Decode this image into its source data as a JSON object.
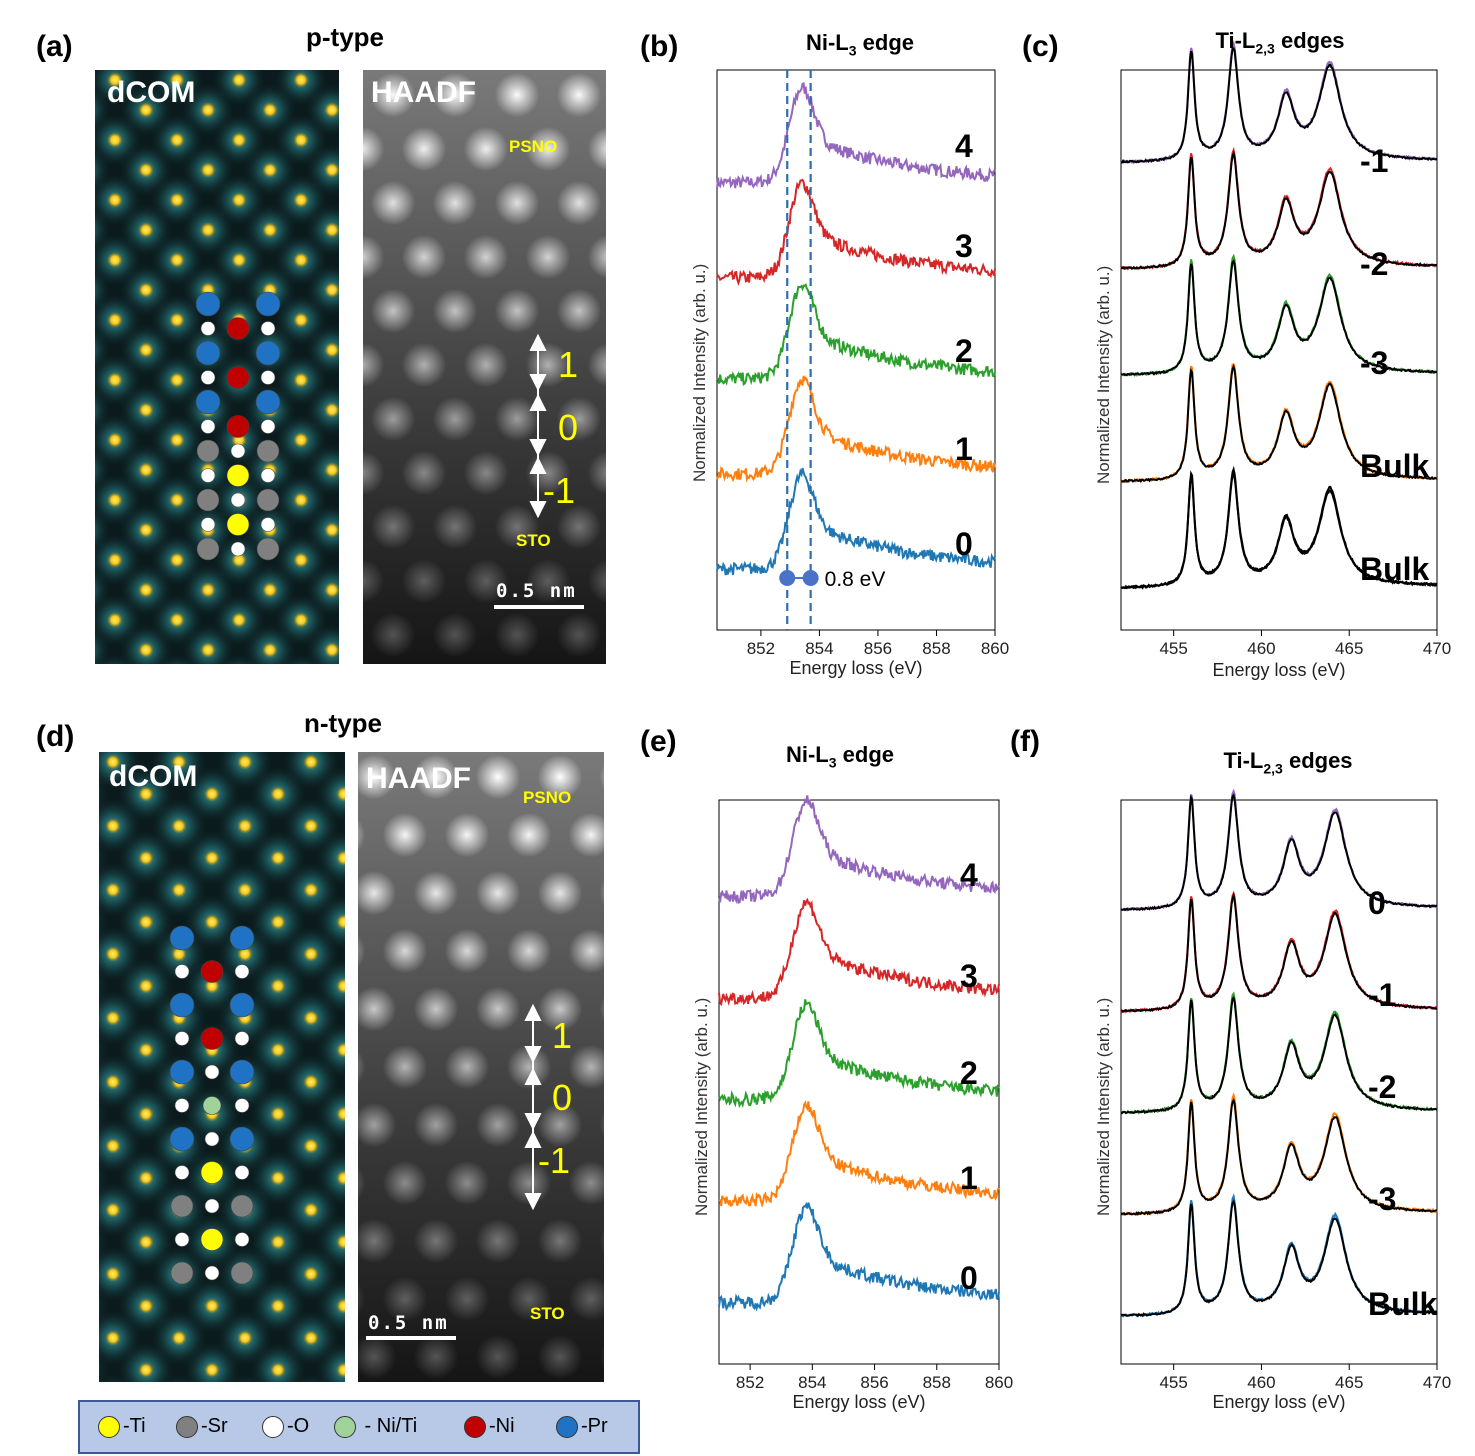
{
  "panels": {
    "a": "(a)",
    "b": "(b)",
    "c": "(c)",
    "d": "(d)",
    "e": "(e)",
    "f": "(f)"
  },
  "top": {
    "title": "p-type",
    "dcom_label": "dCOM",
    "haadf_label": "HAADF",
    "psno": "PSNO",
    "sto": "STO",
    "layers": [
      "1",
      "0",
      "-1"
    ],
    "scale": "0.5 nm"
  },
  "bottom": {
    "title": "n-type",
    "dcom_label": "dCOM",
    "haadf_label": "HAADF",
    "psno": "PSNO",
    "sto": "STO",
    "layers": [
      "1",
      "0",
      "-1"
    ],
    "scale": "0.5 nm"
  },
  "legend": [
    {
      "label": "-Ti",
      "color": "#ffff00"
    },
    {
      "label": "-Sr",
      "color": "#808080"
    },
    {
      "label": "-O",
      "color": "#ffffff"
    },
    {
      "label": " - Ni/Ti",
      "color": "#9fd39a"
    },
    {
      "label": "-Ni",
      "color": "#c00000"
    },
    {
      "label": "-Pr",
      "color": "#1f72c4"
    }
  ],
  "chart_data": [
    {
      "id": "b",
      "type": "line",
      "title": "Ni-L3 edge",
      "xlabel": "Energy loss (eV)",
      "ylabel": "Normalized Intensity (arb. u.)",
      "xlim": [
        850.5,
        860
      ],
      "xticks": [
        852,
        854,
        856,
        858,
        860
      ],
      "series": [
        {
          "name": "4",
          "color": "#9467bd"
        },
        {
          "name": "3",
          "color": "#d62728"
        },
        {
          "name": "2",
          "color": "#2ca02c"
        },
        {
          "name": "1",
          "color": "#ff7f0e"
        },
        {
          "name": "0",
          "color": "#1f77b4"
        }
      ],
      "vlines": [
        852.9,
        853.7
      ],
      "annotation": "0.8 eV",
      "peak_ev": 853.4
    },
    {
      "id": "c",
      "type": "line",
      "title": "Ti-L2,3 edges",
      "xlabel": "Energy loss (eV)",
      "ylabel": "Normalized Intensity (arb. u.)",
      "xlim": [
        452,
        470
      ],
      "xticks": [
        455,
        460,
        465,
        470
      ],
      "series": [
        {
          "name": "-1",
          "color": "#9467bd"
        },
        {
          "name": "-2",
          "color": "#d62728"
        },
        {
          "name": "-3",
          "color": "#2ca02c"
        },
        {
          "name": "Bulk",
          "color": "#ff7f0e"
        },
        {
          "name": "Bulk",
          "color": "#000000"
        }
      ],
      "peaks_ev": [
        456.0,
        458.4,
        461.4,
        463.9
      ]
    },
    {
      "id": "e",
      "type": "line",
      "title": "Ni-L3 edge",
      "xlabel": "Energy loss (eV)",
      "ylabel": "Normalized Intensity (arb. u.)",
      "xlim": [
        851,
        860
      ],
      "xticks": [
        852,
        854,
        856,
        858,
        860
      ],
      "series": [
        {
          "name": "4",
          "color": "#9467bd"
        },
        {
          "name": "3",
          "color": "#d62728"
        },
        {
          "name": "2",
          "color": "#2ca02c"
        },
        {
          "name": "1",
          "color": "#ff7f0e"
        },
        {
          "name": "0",
          "color": "#1f77b4"
        }
      ],
      "peak_ev": 853.8
    },
    {
      "id": "f",
      "type": "line",
      "title": "Ti-L2,3 edges",
      "xlabel": "Energy loss (eV)",
      "ylabel": "Normalized Intensity (arb. u.)",
      "xlim": [
        452,
        470
      ],
      "xticks": [
        455,
        460,
        465,
        470
      ],
      "series": [
        {
          "name": "0",
          "color": "#9467bd"
        },
        {
          "name": "-1",
          "color": "#d62728"
        },
        {
          "name": "-2",
          "color": "#2ca02c"
        },
        {
          "name": "-3",
          "color": "#ff7f0e"
        },
        {
          "name": "Bulk",
          "color": "#1f77b4"
        }
      ],
      "peaks_ev": [
        456.0,
        458.4,
        461.7,
        464.2
      ]
    }
  ]
}
